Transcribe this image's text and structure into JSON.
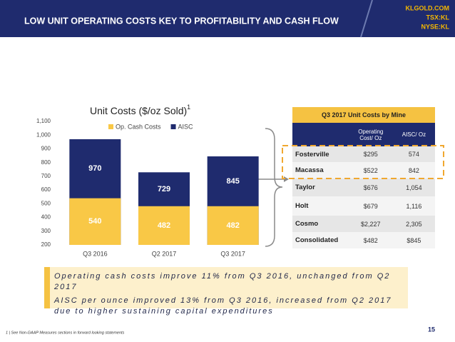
{
  "header": {
    "title": "LOW UNIT OPERATING COSTS KEY TO PROFITABILITY AND CASH FLOW",
    "links": [
      "KLGOLD.COM",
      "TSX:KL",
      "NYSE:KL"
    ]
  },
  "chart_data": {
    "type": "bar",
    "title": "Unit Costs ($/oz Sold)",
    "title_note": "1",
    "categories": [
      "Q3 2016",
      "Q2 2017",
      "Q3 2017"
    ],
    "series": [
      {
        "name": "Op. Cash Costs",
        "color": "#f9c846",
        "values": [
          540,
          482,
          482
        ]
      },
      {
        "name": "AISC",
        "color": "#1f2b6e",
        "values": [
          970,
          729,
          845
        ]
      }
    ],
    "ylim": [
      200,
      1100
    ],
    "yticks": [
      200,
      300,
      400,
      500,
      600,
      700,
      800,
      900,
      {
        "value": 1000,
        "label": "1,000"
      },
      {
        "value": 1100,
        "label": "1,100"
      }
    ],
    "legend": "top"
  },
  "table": {
    "title": "Q3 2017 Unit Costs by Mine",
    "columns": [
      "Operating Cost/ Oz",
      "AISC/ Oz"
    ],
    "rows": [
      [
        "Fosterville",
        "$295",
        "574"
      ],
      [
        "Macassa",
        "$522",
        "842"
      ],
      [
        "Taylor",
        "$676",
        "1,054"
      ],
      [
        "Holt",
        "$679",
        "1,116"
      ],
      [
        "Cosmo",
        "$2,227",
        "2,305"
      ],
      [
        "Consolidated",
        "$482",
        "$845"
      ]
    ]
  },
  "callout": [
    "Operating cash costs improve 11% from Q3 2016, unchanged from Q2 2017",
    "AISC per ounce improved 13% from Q3 2016, increased from Q2 2017 due to higher sustaining capital expenditures"
  ],
  "footnote": "1 | See Non-GAAP Measures sections in forward looking statements",
  "page_number": "15"
}
